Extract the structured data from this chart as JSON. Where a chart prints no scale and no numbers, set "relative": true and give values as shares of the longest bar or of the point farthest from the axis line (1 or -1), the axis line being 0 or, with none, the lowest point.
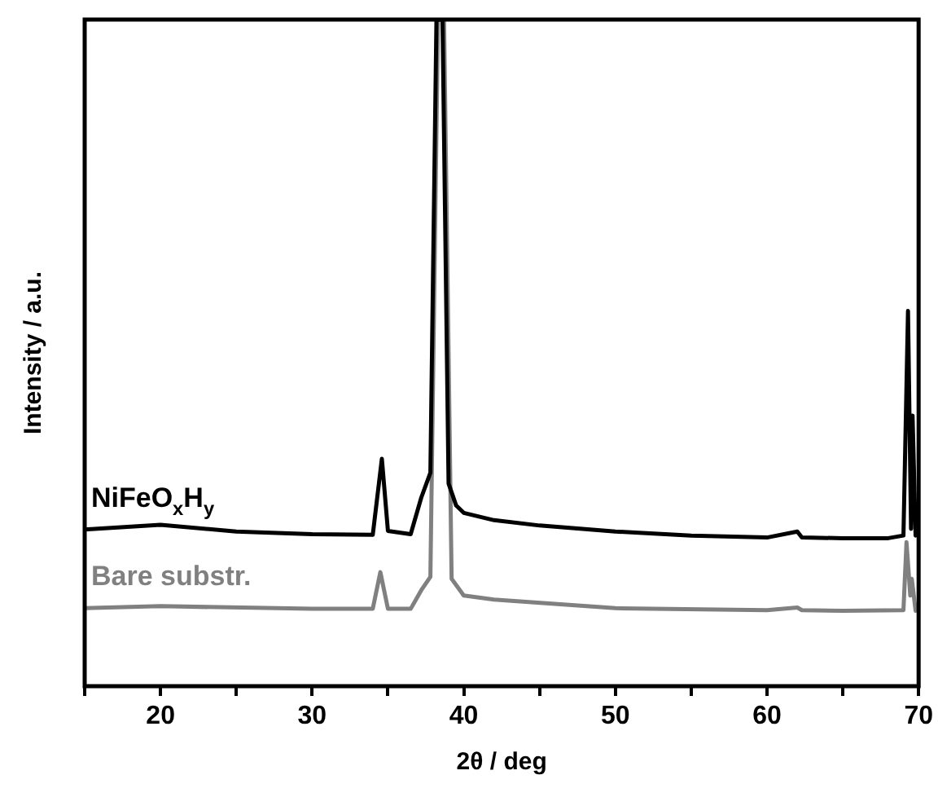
{
  "chart_data": {
    "type": "line",
    "xlabel": "2θ / deg",
    "ylabel": "Intensity / a.u.",
    "relative": true,
    "xlim": [
      15,
      70
    ],
    "xticks": [
      {
        "value": 15,
        "label": null
      },
      20,
      {
        "value": 25,
        "label": null
      },
      30,
      {
        "value": 35,
        "label": null
      },
      40,
      {
        "value": 45,
        "label": null
      },
      50,
      {
        "value": 55,
        "label": null
      },
      60,
      {
        "value": 65,
        "label": null
      },
      70
    ],
    "grid": false,
    "legend": false,
    "marker": "none",
    "line_style": "solid",
    "series": [
      {
        "name": "NiFeO$_{x}$H$_{y}$",
        "color": "#000000",
        "x": [
          15,
          20,
          25,
          30,
          34,
          34.6,
          35,
          36.5,
          37.2,
          37.8,
          38.2,
          38.6,
          39,
          39.5,
          40,
          42,
          45,
          50,
          55,
          60,
          62,
          62.3,
          65,
          68,
          69,
          69.3,
          69.5,
          69.6,
          69.8
        ],
        "values": [
          0.235,
          0.242,
          0.232,
          0.228,
          0.227,
          0.341,
          0.233,
          0.228,
          0.283,
          0.32,
          1,
          1,
          0.304,
          0.271,
          0.26,
          0.249,
          0.241,
          0.232,
          0.226,
          0.223,
          0.232,
          0.223,
          0.222,
          0.222,
          0.226,
          0.563,
          0.236,
          0.406,
          0.226
        ]
      },
      {
        "name": "Bare substr.",
        "color": "#808080",
        "x": [
          15,
          20,
          30,
          34,
          34.5,
          35,
          36.5,
          37.2,
          37.8,
          38.3,
          38.7,
          39.2,
          40,
          42,
          50,
          60,
          62,
          62.3,
          65,
          69,
          69.2,
          69.45,
          69.55,
          69.8
        ],
        "values": [
          0.117,
          0.12,
          0.116,
          0.116,
          0.171,
          0.116,
          0.116,
          0.144,
          0.164,
          1,
          1,
          0.161,
          0.136,
          0.13,
          0.117,
          0.114,
          0.118,
          0.114,
          0.113,
          0.114,
          0.216,
          0.136,
          0.161,
          0.113
        ]
      }
    ]
  }
}
